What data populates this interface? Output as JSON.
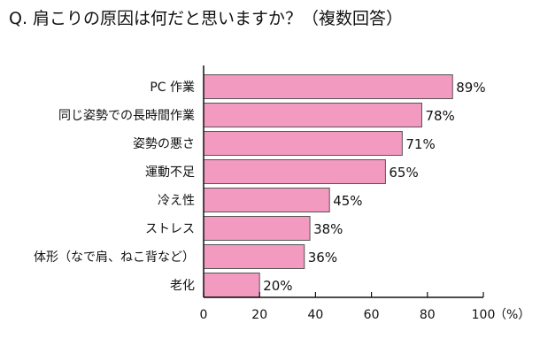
{
  "chart_data": {
    "type": "bar",
    "orientation": "horizontal",
    "title": "Q. 肩こりの原因は何だと思いますか？（複数回答）",
    "categories": [
      "PC 作業",
      "同じ姿勢での長時間作業",
      "姿勢の悪さ",
      "運動不足",
      "冷え性",
      "ストレス",
      "体形（なで肩、ねこ背など）",
      "老化"
    ],
    "values": [
      89,
      78,
      71,
      65,
      45,
      38,
      36,
      20
    ],
    "value_labels": [
      "89%",
      "78%",
      "71%",
      "65%",
      "45%",
      "38%",
      "36%",
      "20%"
    ],
    "xlim": [
      0,
      100
    ],
    "xticks": [
      "0",
      "20",
      "40",
      "60",
      "80",
      "100"
    ],
    "x_unit": "（%）",
    "bar_color": "#f29ac0",
    "grid": false,
    "legend": "none"
  }
}
